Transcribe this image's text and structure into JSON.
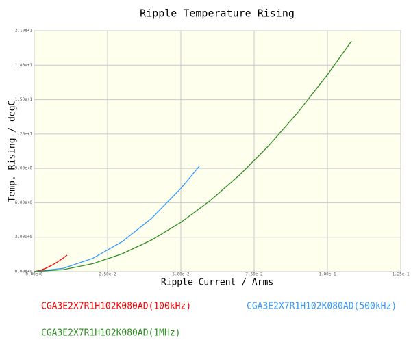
{
  "chart_data": {
    "type": "line",
    "title": "Ripple Temperature Rising",
    "xlabel": "Ripple Current / Arms",
    "ylabel": "Temp. Rising / degC",
    "xlim": [
      0,
      0.125
    ],
    "ylim": [
      0,
      21
    ],
    "xticks": [
      {
        "value": 0,
        "label": "0.00e+0"
      },
      {
        "value": 0.025,
        "label": "2.50e-2"
      },
      {
        "value": 0.05,
        "label": "5.00e-2"
      },
      {
        "value": 0.075,
        "label": "7.50e-2"
      },
      {
        "value": 0.1,
        "label": "1.00e-1"
      },
      {
        "value": 0.125,
        "label": "1.25e-1"
      }
    ],
    "yticks": [
      {
        "value": 0,
        "label": "0.00e+0"
      },
      {
        "value": 3,
        "label": "3.00e+0"
      },
      {
        "value": 6,
        "label": "6.00e+0"
      },
      {
        "value": 9,
        "label": "9.00e+0"
      },
      {
        "value": 12,
        "label": "1.20e+1"
      },
      {
        "value": 15,
        "label": "1.50e+1"
      },
      {
        "value": 18,
        "label": "1.80e+1"
      },
      {
        "value": 21,
        "label": "2.10e+1"
      }
    ],
    "grid": true,
    "series": [
      {
        "name": "CGA3E2X7R1H102K080AD(100kHz)",
        "color": "#ff0000",
        "x": [
          0,
          0.002,
          0.004,
          0.006,
          0.008,
          0.01,
          0.0112
        ],
        "values": [
          0,
          0.1,
          0.3,
          0.55,
          0.85,
          1.2,
          1.43
        ]
      },
      {
        "name": "CGA3E2X7R1H102K080AD(500kHz)",
        "color": "#3399ff",
        "x": [
          0,
          0.01,
          0.02,
          0.03,
          0.04,
          0.05,
          0.0563
        ],
        "values": [
          0,
          0.29,
          1.16,
          2.61,
          4.64,
          7.25,
          9.19
        ]
      },
      {
        "name": "CGA3E2X7R1H102K080AD(1MHz)",
        "color": "#2e8b22",
        "x": [
          0,
          0.01,
          0.02,
          0.03,
          0.04,
          0.05,
          0.06,
          0.07,
          0.08,
          0.09,
          0.1,
          0.1082
        ],
        "values": [
          0,
          0.17,
          0.69,
          1.55,
          2.75,
          4.29,
          6.18,
          8.41,
          10.99,
          13.91,
          17.17,
          20.1
        ]
      }
    ]
  }
}
